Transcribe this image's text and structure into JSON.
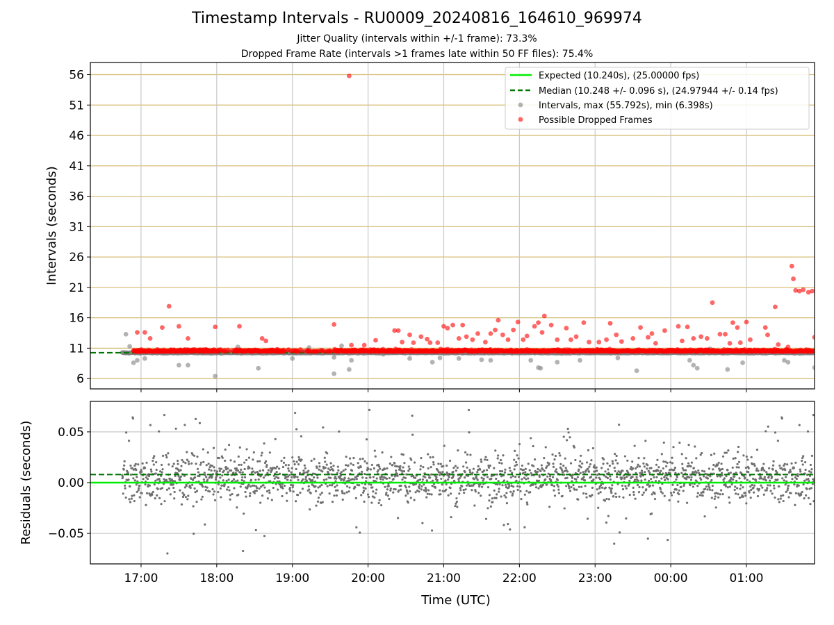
{
  "title": "Timestamp Intervals - RU0009_20240816_164610_969974",
  "subtitle_1": "Jitter Quality (intervals within +/-1 frame): 73.3%",
  "subtitle_2": "Dropped Frame Rate (intervals >1 frames late within 50 FF files): 75.4%",
  "colors": {
    "expected": "#00ee00",
    "median": "#007700",
    "intervals": "#808080",
    "dropped": "#ff0000",
    "hgrid_top": "#d4b86a",
    "grid": "#c8c8c8",
    "residuals": "#707070"
  },
  "chart_data": [
    {
      "type": "scatter",
      "ylabel": "Intervals (seconds)",
      "xlim_hours": [
        16.33,
        25.9
      ],
      "ylim": [
        4.3,
        58.0
      ],
      "yticks": [
        6,
        11,
        16,
        21,
        26,
        31,
        36,
        41,
        46,
        51,
        56
      ],
      "grid": "on",
      "legend_position": "top-right",
      "legend": [
        "Expected (10.240s), (25.00000 fps)",
        "Median (10.248 +/- 0.096 s), (24.97944 +/- 0.14 fps)",
        "Intervals, max (55.792s), min (6.398s)",
        "Possible Dropped Frames"
      ],
      "expected_value": 10.24,
      "median_value": 10.248,
      "median_line_x_range": [
        16.33,
        19.55
      ],
      "series": [
        {
          "name": "Intervals, max (55.792s), min (6.398s)",
          "baseline": 10.24,
          "x_range": [
            16.75,
            25.9
          ],
          "points": [
            [
              16.8,
              13.3
            ],
            [
              16.85,
              11.3
            ],
            [
              16.9,
              8.6
            ],
            [
              16.95,
              9.0
            ],
            [
              17.05,
              9.3
            ],
            [
              17.5,
              8.2
            ],
            [
              17.62,
              8.2
            ],
            [
              17.98,
              6.4
            ],
            [
              18.28,
              11.2
            ],
            [
              18.55,
              7.7
            ],
            [
              19.0,
              9.3
            ],
            [
              19.22,
              11.1
            ],
            [
              19.55,
              6.8
            ],
            [
              19.55,
              9.5
            ],
            [
              19.65,
              11.4
            ],
            [
              19.75,
              7.5
            ],
            [
              19.78,
              9.0
            ],
            [
              20.2,
              10.0
            ],
            [
              20.55,
              9.3
            ],
            [
              20.85,
              8.7
            ],
            [
              20.95,
              9.4
            ],
            [
              21.2,
              9.3
            ],
            [
              21.5,
              9.1
            ],
            [
              21.62,
              9.0
            ],
            [
              22.15,
              9.0
            ],
            [
              22.25,
              7.8
            ],
            [
              22.28,
              7.7
            ],
            [
              22.5,
              8.7
            ],
            [
              22.8,
              9.0
            ],
            [
              23.3,
              9.4
            ],
            [
              23.55,
              7.3
            ],
            [
              24.25,
              9.0
            ],
            [
              24.3,
              8.2
            ],
            [
              24.35,
              7.7
            ],
            [
              24.52,
              10.9
            ],
            [
              24.75,
              7.5
            ],
            [
              24.95,
              8.6
            ],
            [
              25.55,
              8.7
            ],
            [
              25.9,
              7.8
            ],
            [
              25.5,
              9.0
            ]
          ]
        },
        {
          "name": "Possible Dropped Frames",
          "baseline": 10.24,
          "x_range": [
            16.9,
            25.9
          ],
          "points": [
            [
              16.95,
              13.6
            ],
            [
              17.05,
              13.6
            ],
            [
              17.12,
              12.6
            ],
            [
              17.28,
              14.4
            ],
            [
              17.37,
              17.9
            ],
            [
              17.5,
              14.6
            ],
            [
              17.62,
              12.6
            ],
            [
              17.98,
              14.5
            ],
            [
              18.3,
              14.6
            ],
            [
              18.6,
              12.6
            ],
            [
              18.65,
              12.2
            ],
            [
              19.55,
              14.9
            ],
            [
              19.75,
              55.8
            ],
            [
              19.78,
              11.5
            ],
            [
              19.95,
              11.5
            ],
            [
              20.1,
              12.3
            ],
            [
              20.35,
              13.9
            ],
            [
              20.4,
              13.9
            ],
            [
              20.45,
              12.0
            ],
            [
              20.55,
              13.2
            ],
            [
              20.6,
              11.9
            ],
            [
              20.7,
              12.9
            ],
            [
              20.78,
              12.5
            ],
            [
              20.82,
              11.9
            ],
            [
              20.92,
              11.9
            ],
            [
              21.0,
              14.6
            ],
            [
              21.05,
              14.3
            ],
            [
              21.12,
              14.8
            ],
            [
              21.2,
              12.6
            ],
            [
              21.25,
              14.8
            ],
            [
              21.3,
              12.9
            ],
            [
              21.38,
              12.4
            ],
            [
              21.45,
              13.4
            ],
            [
              21.55,
              12.0
            ],
            [
              21.62,
              13.4
            ],
            [
              21.68,
              14.0
            ],
            [
              21.72,
              15.6
            ],
            [
              21.78,
              13.2
            ],
            [
              21.85,
              12.4
            ],
            [
              21.92,
              14.0
            ],
            [
              21.98,
              15.3
            ],
            [
              22.05,
              12.4
            ],
            [
              22.1,
              13.0
            ],
            [
              22.2,
              14.6
            ],
            [
              22.25,
              15.2
            ],
            [
              22.3,
              13.6
            ],
            [
              22.33,
              16.3
            ],
            [
              22.42,
              14.8
            ],
            [
              22.5,
              12.4
            ],
            [
              22.62,
              14.3
            ],
            [
              22.68,
              12.4
            ],
            [
              22.75,
              12.9
            ],
            [
              22.85,
              15.2
            ],
            [
              22.92,
              12.0
            ],
            [
              23.05,
              12.0
            ],
            [
              23.15,
              12.4
            ],
            [
              23.2,
              15.1
            ],
            [
              23.28,
              13.2
            ],
            [
              23.35,
              12.1
            ],
            [
              23.5,
              12.6
            ],
            [
              23.6,
              14.4
            ],
            [
              23.7,
              12.8
            ],
            [
              23.75,
              13.4
            ],
            [
              23.8,
              11.8
            ],
            [
              23.92,
              13.9
            ],
            [
              24.1,
              14.6
            ],
            [
              24.15,
              12.2
            ],
            [
              24.22,
              14.5
            ],
            [
              24.3,
              12.6
            ],
            [
              24.4,
              12.9
            ],
            [
              24.48,
              12.6
            ],
            [
              24.55,
              18.5
            ],
            [
              24.65,
              13.3
            ],
            [
              24.72,
              13.3
            ],
            [
              24.78,
              11.8
            ],
            [
              24.82,
              15.2
            ],
            [
              24.88,
              14.4
            ],
            [
              24.92,
              11.9
            ],
            [
              25.0,
              15.3
            ],
            [
              25.05,
              12.4
            ],
            [
              25.25,
              14.4
            ],
            [
              25.28,
              13.2
            ],
            [
              25.38,
              17.8
            ],
            [
              25.42,
              11.6
            ],
            [
              25.55,
              11.2
            ],
            [
              25.6,
              24.5
            ],
            [
              25.62,
              22.4
            ],
            [
              25.65,
              20.5
            ],
            [
              25.7,
              20.4
            ],
            [
              25.75,
              20.6
            ],
            [
              25.82,
              20.2
            ],
            [
              25.87,
              20.4
            ],
            [
              25.9,
              12.8
            ]
          ]
        }
      ]
    },
    {
      "type": "scatter",
      "xlabel": "Time (UTC)",
      "ylabel": "Residuals (seconds)",
      "xlim_hours": [
        16.33,
        25.9
      ],
      "ylim": [
        -0.08,
        0.08
      ],
      "yticks": [
        0.05,
        0.0,
        -0.05
      ],
      "ytick_labels": [
        "0.05",
        "0.00",
        "−0.05"
      ],
      "xticks_hours": [
        17,
        18,
        19,
        20,
        21,
        22,
        23,
        24,
        25
      ],
      "xtick_labels": [
        "17:00",
        "18:00",
        "19:00",
        "20:00",
        "21:00",
        "22:00",
        "23:00",
        "00:00",
        "01:00"
      ],
      "grid": "on",
      "expected_value": 0.0,
      "median_value": 0.008,
      "series": [
        {
          "name": "Residuals",
          "x_range": [
            16.75,
            25.9
          ],
          "center": 0.005,
          "spread": 0.02
        }
      ]
    }
  ]
}
